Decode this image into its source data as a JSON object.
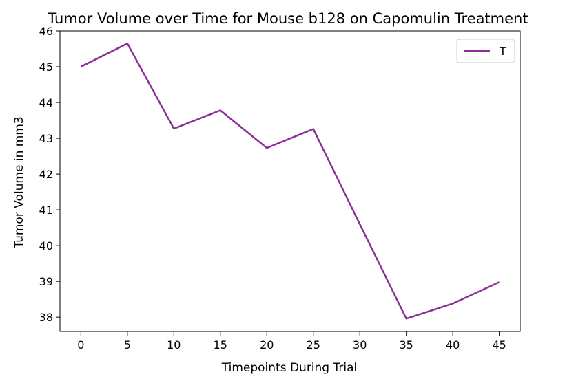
{
  "chart_data": {
    "type": "line",
    "title": "Tumor Volume over Time for Mouse b128 on Capomulin Treatment",
    "xlabel": "Timepoints During Trial",
    "ylabel": "Tumor Volume in mm3",
    "x": [
      0,
      5,
      10,
      15,
      20,
      25,
      30,
      35,
      40,
      45
    ],
    "series": [
      {
        "name": "T",
        "color": "#8b2f97",
        "values": [
          45.0,
          45.65,
          43.27,
          43.78,
          42.73,
          43.26,
          40.6,
          37.96,
          38.38,
          38.98
        ]
      }
    ],
    "xlim": [
      -2.25,
      47.25
    ],
    "ylim": [
      37.6,
      46.0
    ],
    "xticks": [
      0,
      5,
      10,
      15,
      20,
      25,
      30,
      35,
      40,
      45
    ],
    "yticks": [
      38,
      39,
      40,
      41,
      42,
      43,
      44,
      45,
      46
    ],
    "grid": false,
    "legend_position": "top-right"
  }
}
